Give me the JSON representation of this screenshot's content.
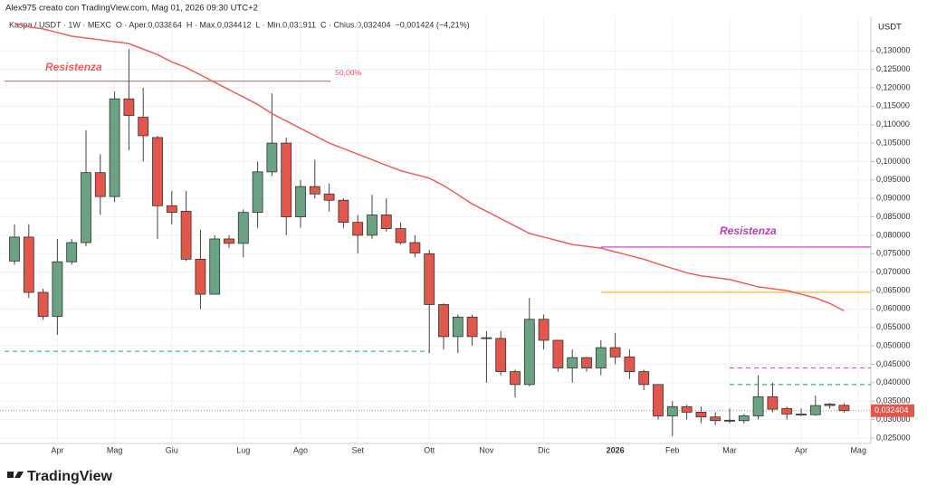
{
  "chart_data": {
    "type": "candlestick",
    "credit": "Alex975 creato con TradingView.com, Mag 01, 2026 09:30 UTC+2",
    "legend": "Kaspa / USDT · 1W · MEXC  O · Aper.0,033864  H · Max.0,034412  L · Min.0,031911  C · Chius.0,032404  −0,001424 (−4,21%)",
    "y_unit": "USDT",
    "brand": "TradingView",
    "categories": [
      null,
      null,
      null,
      "Apr",
      null,
      null,
      null,
      "Mag",
      null,
      null,
      null,
      "Giu",
      null,
      null,
      null,
      null,
      "Lug",
      null,
      null,
      null,
      "Ago",
      null,
      null,
      null,
      "Set",
      null,
      null,
      null,
      null,
      "Ott",
      null,
      null,
      null,
      "Nov",
      null,
      null,
      null,
      "Dic",
      null,
      null,
      null,
      null,
      "2026",
      null,
      null,
      null,
      "Feb",
      null,
      null,
      null,
      "Mar",
      null,
      null,
      null,
      null,
      "Apr",
      null,
      null,
      null,
      "Mag"
    ],
    "open": [
      0.073,
      0.0795,
      0.0645,
      0.058,
      0.0728,
      0.078,
      0.097,
      0.0905,
      0.117,
      0.112,
      0.1065,
      0.088,
      0.0865,
      0.0735,
      0.064,
      0.079,
      0.0778,
      0.0862,
      0.0972,
      0.105,
      0.085,
      0.0932,
      0.0912,
      0.0895,
      0.0835,
      0.08,
      0.0855,
      0.0818,
      0.078,
      0.075,
      0.0612,
      0.0525,
      0.0578,
      0.0522,
      0.052,
      0.043,
      0.0395,
      0.0572,
      0.0515,
      0.044,
      0.0468,
      0.044,
      0.0495,
      0.047,
      0.043,
      0.0395,
      0.031,
      0.0335,
      0.032,
      0.0307,
      0.0298,
      0.0297,
      0.031,
      0.0362,
      0.033,
      0.0315,
      0.0313,
      0.0342,
      0.033864,
      null
    ],
    "high": [
      0.083,
      0.083,
      0.0655,
      0.079,
      0.079,
      0.1085,
      0.102,
      0.119,
      0.1305,
      0.12,
      0.107,
      0.092,
      0.092,
      0.0815,
      0.08,
      0.08,
      0.087,
      0.1,
      0.1185,
      0.1065,
      0.095,
      0.1005,
      0.094,
      0.09,
      0.0855,
      0.091,
      0.09,
      0.0835,
      0.08,
      0.076,
      0.0615,
      0.0585,
      0.0585,
      0.054,
      0.054,
      0.0435,
      0.063,
      0.0585,
      0.0515,
      0.049,
      0.047,
      0.0515,
      0.0535,
      0.049,
      0.0435,
      0.0395,
      0.035,
      0.034,
      0.0335,
      0.032,
      0.033,
      0.0315,
      0.042,
      0.04,
      0.0335,
      0.033,
      0.0365,
      0.0345,
      0.034412,
      null
    ],
    "low": [
      0.072,
      0.063,
      0.057,
      0.053,
      0.072,
      0.077,
      0.0855,
      0.089,
      0.103,
      0.1,
      0.079,
      0.083,
      0.073,
      0.06,
      0.064,
      0.0765,
      0.074,
      0.082,
      0.096,
      0.08,
      0.082,
      0.09,
      0.0865,
      0.082,
      0.075,
      0.079,
      0.081,
      0.0775,
      0.074,
      0.048,
      0.049,
      0.048,
      0.05,
      0.04,
      0.042,
      0.036,
      0.039,
      0.049,
      0.043,
      0.04,
      0.043,
      0.042,
      0.045,
      0.041,
      0.038,
      0.03,
      0.0255,
      0.03,
      0.029,
      0.0285,
      0.029,
      0.029,
      0.03,
      0.032,
      0.03,
      0.031,
      0.031,
      0.033,
      0.031911,
      null
    ],
    "close": [
      0.0795,
      0.0645,
      0.058,
      0.0728,
      0.078,
      0.097,
      0.0905,
      0.117,
      0.1125,
      0.107,
      0.088,
      0.0862,
      0.0735,
      0.064,
      0.079,
      0.0778,
      0.0862,
      0.0972,
      0.105,
      0.085,
      0.0932,
      0.0912,
      0.0895,
      0.0835,
      0.08,
      0.0855,
      0.0818,
      0.078,
      0.0752,
      0.0612,
      0.0525,
      0.0578,
      0.0525,
      0.052,
      0.043,
      0.0395,
      0.0572,
      0.0515,
      0.044,
      0.0468,
      0.044,
      0.0495,
      0.047,
      0.043,
      0.0395,
      0.031,
      0.0335,
      0.032,
      0.0307,
      0.0297,
      0.0297,
      0.031,
      0.0362,
      0.0328,
      0.0315,
      0.0313,
      0.0338,
      0.0338,
      0.032404,
      null
    ],
    "up_color": "#6aa283",
    "down_color": "#e2574c",
    "moving_average": {
      "color": "#e8605f",
      "values": [
        0.1375,
        0.1365,
        0.136,
        0.135,
        0.134,
        0.1335,
        0.133,
        0.1325,
        0.132,
        0.1305,
        0.129,
        0.127,
        0.1255,
        0.1235,
        0.1215,
        0.1195,
        0.1175,
        0.1155,
        0.113,
        0.111,
        0.109,
        0.107,
        0.105,
        0.1035,
        0.102,
        0.1005,
        0.099,
        0.0975,
        0.0965,
        0.0955,
        0.0935,
        0.091,
        0.0885,
        0.0865,
        0.0845,
        0.0825,
        0.0805,
        0.0795,
        0.0785,
        0.0775,
        0.077,
        0.0765,
        0.0755,
        0.0745,
        0.0735,
        0.0722,
        0.071,
        0.0698,
        0.069,
        0.0685,
        0.068,
        0.067,
        0.066,
        0.0655,
        0.065,
        0.064,
        0.063,
        0.0615,
        0.0595,
        null
      ]
    },
    "levels": [
      {
        "value": 0.1218,
        "color": "#e8605f",
        "style": "solid",
        "x_range": [
          -0.7,
          22.1
        ],
        "label": "Resistenza",
        "level_label": "50,00%"
      },
      {
        "value": 0.0768,
        "color": "#b63dbb",
        "style": "solid",
        "x_range": [
          41,
          null
        ],
        "label": "Resistenza"
      },
      {
        "value": 0.0645,
        "color": "#f5b335",
        "style": "solid",
        "x_range": [
          41,
          null
        ]
      },
      {
        "value": 0.0485,
        "color": "#3fa99a",
        "style": "dashed",
        "x_range": [
          -0.7,
          29
        ]
      },
      {
        "value": 0.044,
        "color": "#c06ad0",
        "style": "dashed",
        "x_range": [
          50,
          null
        ]
      },
      {
        "value": 0.0395,
        "color": "#3fa99a",
        "style": "dashed",
        "x_range": [
          50,
          null
        ]
      }
    ],
    "last_price": {
      "value": 0.032404,
      "label": "0,032404"
    },
    "ylim": [
      0.0235,
      0.1394
    ],
    "yticks": [
      {
        "value": 0.025,
        "label": "0,025000"
      },
      {
        "value": 0.03,
        "label": "0,030000"
      },
      {
        "value": 0.035,
        "label": "0,035000"
      },
      {
        "value": 0.04,
        "label": "0,040000"
      },
      {
        "value": 0.045,
        "label": "0,045000"
      },
      {
        "value": 0.05,
        "label": "0,050000"
      },
      {
        "value": 0.055,
        "label": "0,055000"
      },
      {
        "value": 0.06,
        "label": "0,060000"
      },
      {
        "value": 0.065,
        "label": "0,065000"
      },
      {
        "value": 0.07,
        "label": "0,070000"
      },
      {
        "value": 0.075,
        "label": "0,075000"
      },
      {
        "value": 0.08,
        "label": "0,080000"
      },
      {
        "value": 0.085,
        "label": "0,085000"
      },
      {
        "value": 0.09,
        "label": "0,090000"
      },
      {
        "value": 0.095,
        "label": "0,095000"
      },
      {
        "value": 0.1,
        "label": "0,100000"
      },
      {
        "value": 0.105,
        "label": "0,105000"
      },
      {
        "value": 0.11,
        "label": "0,110000"
      },
      {
        "value": 0.115,
        "label": "0,115000"
      },
      {
        "value": 0.12,
        "label": "0,120000"
      },
      {
        "value": 0.125,
        "label": "0,125000"
      },
      {
        "value": 0.13,
        "label": "0,130000"
      }
    ],
    "grid": true
  }
}
